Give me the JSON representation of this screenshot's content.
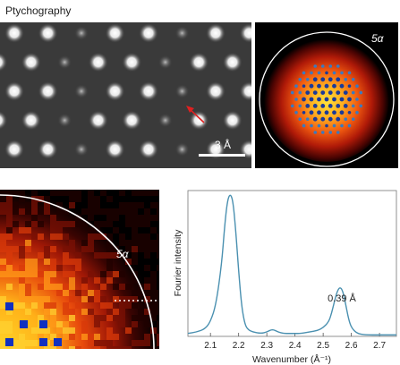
{
  "title": "Ptychography",
  "panel_image": {
    "scale_bar_label": "3 Å"
  },
  "panel_fft": {
    "aperture_label": "5α"
  },
  "panel_zoom": {
    "aperture_label": "5α"
  },
  "chart_data": {
    "type": "line",
    "xlabel": "Wavenumber (Å⁻¹)",
    "ylabel": "Fourier intensity",
    "xlim": [
      2.02,
      2.76
    ],
    "ylim": [
      0,
      1.0
    ],
    "xticks": [
      "2.1",
      "2.2",
      "2.3",
      "2.4",
      "2.5",
      "2.6",
      "2.7"
    ],
    "annotation": "0.39 Å",
    "series": [
      {
        "color": "#4a90b0",
        "x": [
          2.02,
          2.05,
          2.08,
          2.1,
          2.12,
          2.14,
          2.15,
          2.16,
          2.17,
          2.18,
          2.19,
          2.2,
          2.21,
          2.22,
          2.23,
          2.25,
          2.28,
          2.3,
          2.32,
          2.34,
          2.36,
          2.38,
          2.4,
          2.42,
          2.45,
          2.48,
          2.5,
          2.52,
          2.53,
          2.54,
          2.55,
          2.56,
          2.57,
          2.58,
          2.59,
          2.6,
          2.62,
          2.65,
          2.7,
          2.76
        ],
        "y": [
          0.02,
          0.03,
          0.05,
          0.1,
          0.22,
          0.5,
          0.75,
          0.93,
          0.98,
          0.93,
          0.72,
          0.45,
          0.22,
          0.1,
          0.05,
          0.03,
          0.02,
          0.03,
          0.05,
          0.03,
          0.02,
          0.02,
          0.02,
          0.02,
          0.03,
          0.04,
          0.06,
          0.1,
          0.16,
          0.24,
          0.31,
          0.34,
          0.31,
          0.22,
          0.12,
          0.06,
          0.02,
          0.01,
          0.01,
          0.01
        ]
      }
    ]
  },
  "colors": {
    "line": "#4a90b0",
    "arrow": "#e02020",
    "circle": "#ffffff"
  }
}
